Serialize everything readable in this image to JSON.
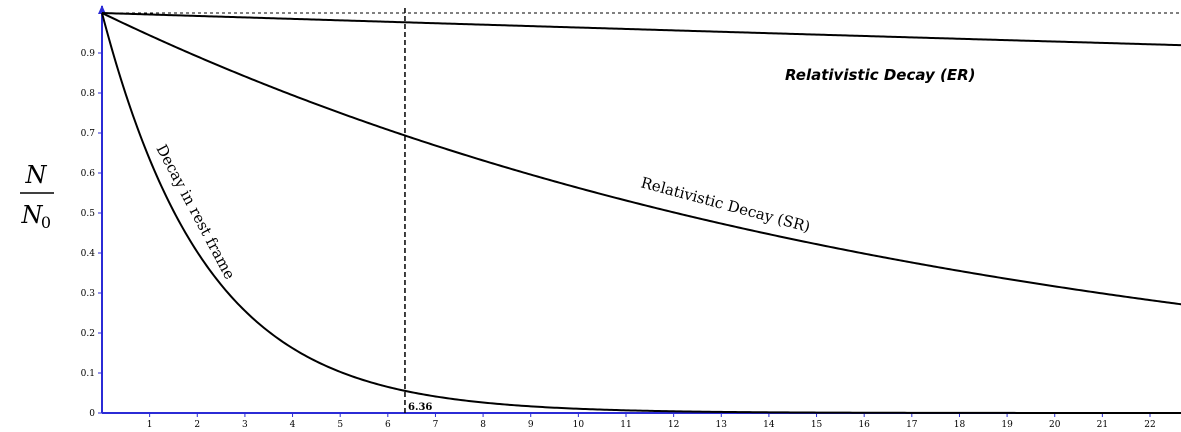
{
  "chart_data": {
    "type": "line",
    "title": "",
    "xlabel": "",
    "ylabel": {
      "numerator": "N",
      "denominator_base": "N",
      "denominator_sub": "0"
    },
    "xlim": [
      0,
      23
    ],
    "ylim": [
      0,
      1
    ],
    "x_ticks": [
      1,
      2,
      3,
      4,
      5,
      6,
      7,
      8,
      9,
      10,
      11,
      12,
      13,
      14,
      15,
      16,
      17,
      18,
      19,
      20,
      21,
      22
    ],
    "y_ticks": [
      {
        "value": 0,
        "label": "0"
      },
      {
        "value": 0.1,
        "label": "0.1"
      },
      {
        "value": 0.2,
        "label": "0.2"
      },
      {
        "value": 0.3,
        "label": "0.3"
      },
      {
        "value": 0.4,
        "label": "0.4"
      },
      {
        "value": 0.5,
        "label": "0.5"
      },
      {
        "value": 0.6,
        "label": "0.6"
      },
      {
        "value": 0.7,
        "label": "0.7"
      },
      {
        "value": 0.8,
        "label": "0.8"
      },
      {
        "value": 0.9,
        "label": "0.9"
      }
    ],
    "grid": false,
    "reference_line_y": 1,
    "marker_x": {
      "value": 6.36,
      "label": "6.36"
    },
    "series": [
      {
        "name": "Decay in rest frame",
        "rate": 0.455
      },
      {
        "name": "Relativistic Decay (SR)",
        "rate": 0.0575
      },
      {
        "name": "Relativistic Decay (ER)",
        "rate": 0.0037
      }
    ],
    "annotation": "Relativistic Decay (ER)"
  },
  "colors": {
    "axis": "#2b2bd6",
    "curve": "#000000"
  }
}
